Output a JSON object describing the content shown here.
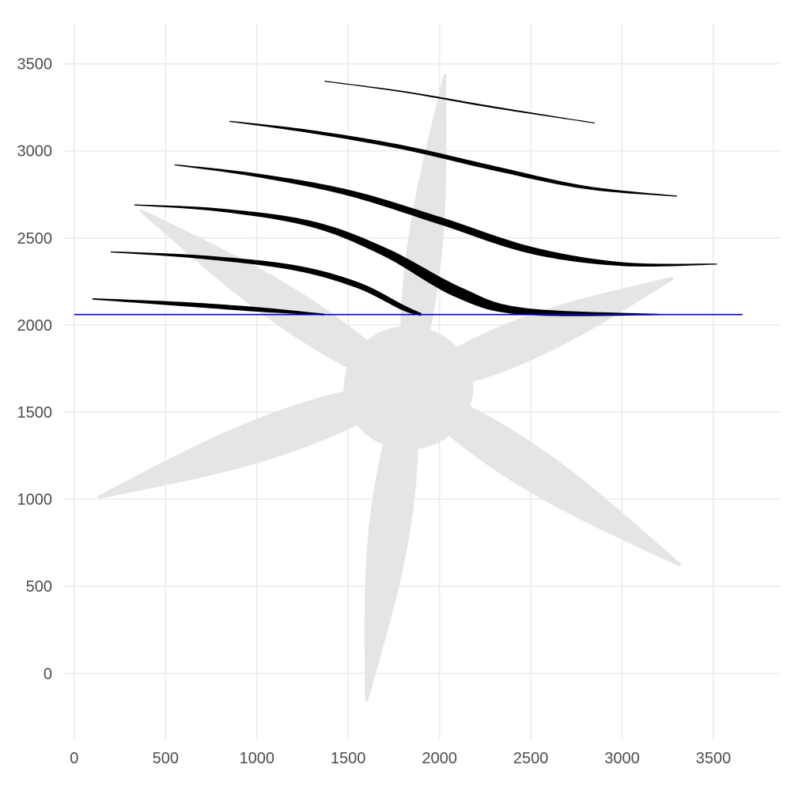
{
  "chart_data": {
    "type": "line",
    "title": "",
    "xlabel": "",
    "ylabel": "",
    "xlim": [
      -60,
      3860
    ],
    "ylim": [
      -380,
      3730
    ],
    "grid": true,
    "x_ticks": [
      0,
      500,
      1000,
      1500,
      2000,
      2500,
      3000,
      3500
    ],
    "y_ticks": [
      0,
      500,
      1000,
      1500,
      2000,
      2500,
      3000,
      3500
    ],
    "x_tick_labels": [
      "0",
      "500",
      "1000",
      "1500",
      "2000",
      "2500",
      "3000",
      "3500"
    ],
    "y_tick_labels": [
      "0",
      "500",
      "1000",
      "1500",
      "2000",
      "2500",
      "3000",
      "3500"
    ],
    "colors": {
      "background_shape": "#e5e5e5",
      "streaks": "#000000",
      "reference_line": "#0000cc",
      "grid": "#ebebeb",
      "tick_text": "#4d4d4d"
    },
    "background_shape": {
      "type": "propeller",
      "hub": {
        "x": 1830,
        "y": 1640,
        "r": 355
      },
      "blades": [
        {
          "tip": {
            "x": 2030,
            "y": 3440
          },
          "width": 230
        },
        {
          "tip": {
            "x": 3280,
            "y": 2270
          },
          "width": 280
        },
        {
          "tip": {
            "x": 3320,
            "y": 620
          },
          "width": 280
        },
        {
          "tip": {
            "x": 1600,
            "y": -160
          },
          "width": 270
        },
        {
          "tip": {
            "x": 130,
            "y": 1010
          },
          "width": 280
        },
        {
          "tip": {
            "x": 360,
            "y": 2660
          },
          "width": 260
        }
      ]
    },
    "reference_line": {
      "y": 2060,
      "x_start": 0,
      "x_end": 3660
    },
    "series": [
      {
        "points": [
          [
            100,
            2150
          ],
          [
            600,
            2120
          ],
          [
            1000,
            2090
          ],
          [
            1370,
            2060
          ]
        ],
        "widths": [
          8,
          24,
          26,
          10
        ]
      },
      {
        "points": [
          [
            200,
            2420
          ],
          [
            700,
            2390
          ],
          [
            1200,
            2330
          ],
          [
            1550,
            2230
          ],
          [
            1800,
            2100
          ],
          [
            1900,
            2060
          ]
        ],
        "widths": [
          6,
          20,
          30,
          34,
          30,
          16
        ]
      },
      {
        "points": [
          [
            330,
            2690
          ],
          [
            800,
            2660
          ],
          [
            1300,
            2580
          ],
          [
            1700,
            2420
          ],
          [
            2100,
            2190
          ],
          [
            2450,
            2080
          ],
          [
            3200,
            2060
          ]
        ],
        "widths": [
          6,
          18,
          34,
          48,
          64,
          40,
          8
        ]
      },
      {
        "points": [
          [
            550,
            2920
          ],
          [
            1000,
            2860
          ],
          [
            1500,
            2760
          ],
          [
            2000,
            2600
          ],
          [
            2500,
            2430
          ],
          [
            3000,
            2350
          ],
          [
            3520,
            2350
          ]
        ],
        "widths": [
          6,
          20,
          34,
          42,
          40,
          22,
          6
        ]
      },
      {
        "points": [
          [
            850,
            3170
          ],
          [
            1300,
            3110
          ],
          [
            1800,
            3020
          ],
          [
            2300,
            2900
          ],
          [
            2800,
            2790
          ],
          [
            3300,
            2740
          ]
        ],
        "widths": [
          6,
          18,
          24,
          26,
          18,
          6
        ]
      },
      {
        "points": [
          [
            1370,
            3400
          ],
          [
            1800,
            3340
          ],
          [
            2300,
            3250
          ],
          [
            2850,
            3160
          ]
        ],
        "widths": [
          4,
          8,
          10,
          4
        ]
      }
    ]
  }
}
